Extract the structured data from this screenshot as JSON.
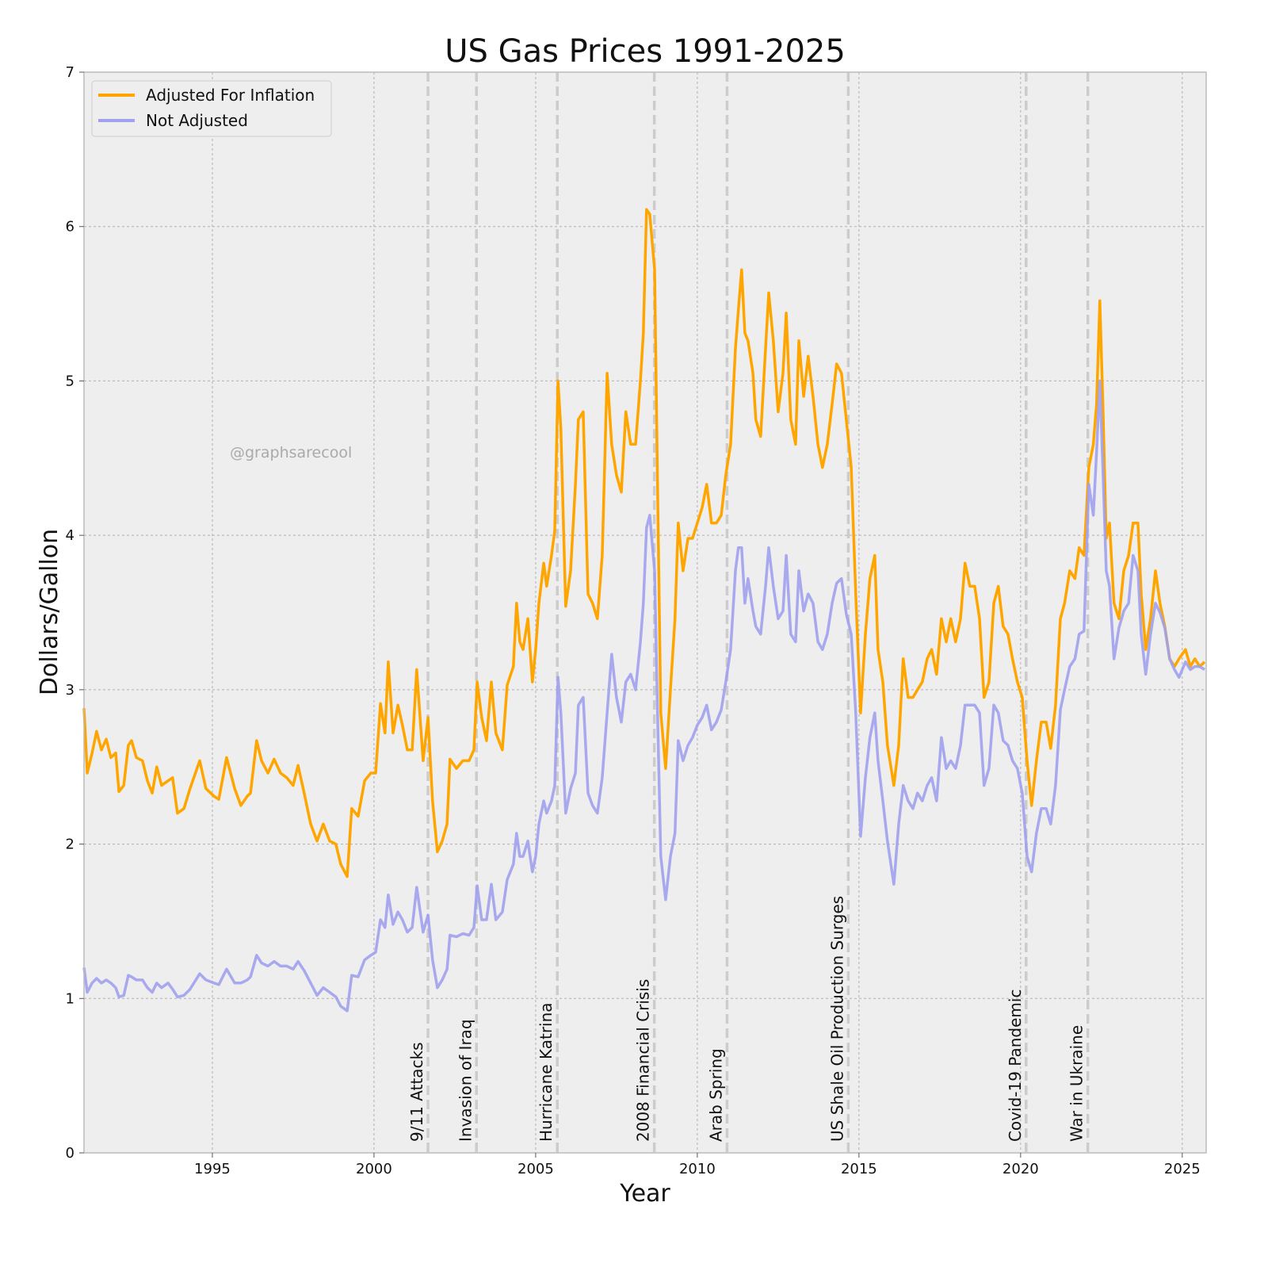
{
  "chart_data": {
    "type": "line",
    "title": "US Gas Prices 1991-2025",
    "xlabel": "Year",
    "ylabel": "Dollars/Gallon",
    "xlim": [
      1991.03,
      2025.74
    ],
    "ylim": [
      0,
      7
    ],
    "xticks": [
      1995,
      2000,
      2005,
      2010,
      2015,
      2020,
      2025
    ],
    "yticks": [
      0,
      1,
      2,
      3,
      4,
      5,
      6,
      7
    ],
    "grid": true,
    "legend_position": "top-left",
    "watermark": "@graphsarecool",
    "x": [
      1991.03,
      1991.13,
      1991.28,
      1991.42,
      1991.57,
      1991.72,
      1991.86,
      1992.01,
      1992.11,
      1992.26,
      1992.4,
      1992.5,
      1992.65,
      1992.84,
      1992.99,
      1993.14,
      1993.28,
      1993.43,
      1993.63,
      1993.77,
      1993.92,
      1994.12,
      1994.31,
      1994.61,
      1994.8,
      1995.05,
      1995.2,
      1995.44,
      1995.69,
      1995.88,
      1996.08,
      1996.18,
      1996.37,
      1996.52,
      1996.72,
      1996.91,
      1997.11,
      1997.3,
      1997.5,
      1997.65,
      1997.84,
      1998.04,
      1998.24,
      1998.43,
      1998.63,
      1998.82,
      1998.97,
      1999.17,
      1999.31,
      1999.51,
      1999.71,
      1999.9,
      2000.05,
      2000.2,
      2000.34,
      2000.44,
      2000.59,
      2000.74,
      2000.88,
      2001.03,
      2001.18,
      2001.32,
      2001.52,
      2001.67,
      2001.81,
      2001.96,
      2002.11,
      2002.26,
      2002.35,
      2002.55,
      2002.75,
      2002.94,
      2003.09,
      2003.19,
      2003.33,
      2003.48,
      2003.63,
      2003.77,
      2003.97,
      2004.12,
      2004.31,
      2004.41,
      2004.51,
      2004.61,
      2004.76,
      2004.9,
      2005.0,
      2005.1,
      2005.25,
      2005.34,
      2005.49,
      2005.59,
      2005.69,
      2005.78,
      2005.93,
      2006.08,
      2006.23,
      2006.32,
      2006.47,
      2006.62,
      2006.76,
      2006.91,
      2007.06,
      2007.21,
      2007.35,
      2007.5,
      2007.65,
      2007.79,
      2007.94,
      2008.09,
      2008.24,
      2008.33,
      2008.43,
      2008.53,
      2008.68,
      2008.77,
      2008.87,
      2009.02,
      2009.17,
      2009.31,
      2009.41,
      2009.56,
      2009.71,
      2009.85,
      2010.0,
      2010.15,
      2010.29,
      2010.44,
      2010.59,
      2010.74,
      2010.88,
      2011.03,
      2011.18,
      2011.27,
      2011.37,
      2011.47,
      2011.57,
      2011.72,
      2011.81,
      2011.96,
      2012.11,
      2012.21,
      2012.35,
      2012.5,
      2012.65,
      2012.75,
      2012.89,
      2013.04,
      2013.14,
      2013.29,
      2013.43,
      2013.58,
      2013.73,
      2013.87,
      2014.02,
      2014.17,
      2014.31,
      2014.46,
      2014.61,
      2014.76,
      2014.9,
      2015.05,
      2015.2,
      2015.34,
      2015.49,
      2015.59,
      2015.74,
      2015.88,
      2016.08,
      2016.23,
      2016.37,
      2016.52,
      2016.67,
      2016.81,
      2016.96,
      2017.11,
      2017.25,
      2017.4,
      2017.55,
      2017.7,
      2017.84,
      2017.99,
      2018.14,
      2018.28,
      2018.43,
      2018.58,
      2018.73,
      2018.87,
      2019.02,
      2019.17,
      2019.31,
      2019.46,
      2019.61,
      2019.75,
      2019.9,
      2020.05,
      2020.2,
      2020.34,
      2020.49,
      2020.64,
      2020.79,
      2020.93,
      2021.08,
      2021.23,
      2021.36,
      2021.52,
      2021.68,
      2021.81,
      2021.96,
      2022.11,
      2022.25,
      2022.35,
      2022.45,
      2022.55,
      2022.65,
      2022.75,
      2022.89,
      2023.04,
      2023.19,
      2023.34,
      2023.48,
      2023.63,
      2023.73,
      2023.87,
      2024.02,
      2024.17,
      2024.31,
      2024.46,
      2024.61,
      2024.76,
      2024.9,
      2025.1,
      2025.25,
      2025.39,
      2025.54,
      2025.69
    ],
    "series": [
      {
        "name": "Adjusted For Inflation",
        "color": "#ffa500",
        "values": [
          2.88,
          2.46,
          2.59,
          2.73,
          2.61,
          2.68,
          2.56,
          2.59,
          2.34,
          2.38,
          2.64,
          2.67,
          2.56,
          2.54,
          2.41,
          2.33,
          2.5,
          2.38,
          2.41,
          2.43,
          2.2,
          2.23,
          2.36,
          2.54,
          2.36,
          2.31,
          2.29,
          2.56,
          2.36,
          2.25,
          2.31,
          2.33,
          2.67,
          2.54,
          2.46,
          2.55,
          2.46,
          2.43,
          2.38,
          2.51,
          2.33,
          2.13,
          2.02,
          2.13,
          2.02,
          2.0,
          1.87,
          1.79,
          2.23,
          2.18,
          2.41,
          2.46,
          2.46,
          2.91,
          2.72,
          3.18,
          2.72,
          2.9,
          2.77,
          2.61,
          2.61,
          3.13,
          2.54,
          2.82,
          2.28,
          1.95,
          2.02,
          2.13,
          2.55,
          2.49,
          2.54,
          2.54,
          2.61,
          3.05,
          2.82,
          2.67,
          3.05,
          2.72,
          2.61,
          3.03,
          3.15,
          3.56,
          3.31,
          3.26,
          3.46,
          3.05,
          3.26,
          3.56,
          3.82,
          3.67,
          3.87,
          4.03,
          5.0,
          4.69,
          3.54,
          3.77,
          4.33,
          4.75,
          4.8,
          3.62,
          3.56,
          3.46,
          3.87,
          5.05,
          4.59,
          4.39,
          4.28,
          4.8,
          4.59,
          4.59,
          5.0,
          5.31,
          6.11,
          6.08,
          5.72,
          4.33,
          2.85,
          2.49,
          3.0,
          3.46,
          4.08,
          3.77,
          3.98,
          3.98,
          4.08,
          4.18,
          4.33,
          4.08,
          4.08,
          4.13,
          4.39,
          4.59,
          5.21,
          5.46,
          5.72,
          5.31,
          5.26,
          5.05,
          4.75,
          4.64,
          5.21,
          5.57,
          5.26,
          4.8,
          5.05,
          5.44,
          4.75,
          4.59,
          5.26,
          4.9,
          5.16,
          4.9,
          4.59,
          4.44,
          4.59,
          4.85,
          5.11,
          5.05,
          4.75,
          4.44,
          3.62,
          2.85,
          3.36,
          3.72,
          3.87,
          3.26,
          3.05,
          2.64,
          2.38,
          2.64,
          3.2,
          2.95,
          2.95,
          3.0,
          3.05,
          3.2,
          3.26,
          3.1,
          3.46,
          3.31,
          3.46,
          3.31,
          3.46,
          3.82,
          3.67,
          3.67,
          3.46,
          2.95,
          3.05,
          3.56,
          3.67,
          3.41,
          3.36,
          3.2,
          3.05,
          2.95,
          2.54,
          2.25,
          2.54,
          2.79,
          2.79,
          2.62,
          2.9,
          3.46,
          3.56,
          3.77,
          3.72,
          3.92,
          3.87,
          4.44,
          4.59,
          4.85,
          5.52,
          4.8,
          3.98,
          4.08,
          3.56,
          3.46,
          3.77,
          3.87,
          4.08,
          4.08,
          3.62,
          3.26,
          3.46,
          3.77,
          3.56,
          3.41,
          3.2,
          3.15,
          3.2,
          3.26,
          3.15,
          3.2,
          3.15,
          3.18
        ]
      },
      {
        "name": "Not Adjusted",
        "color": "#a0a0ee",
        "values": [
          1.2,
          1.04,
          1.1,
          1.13,
          1.1,
          1.12,
          1.1,
          1.07,
          1.01,
          1.02,
          1.15,
          1.14,
          1.12,
          1.12,
          1.07,
          1.04,
          1.1,
          1.07,
          1.1,
          1.06,
          1.01,
          1.02,
          1.06,
          1.16,
          1.12,
          1.1,
          1.09,
          1.19,
          1.1,
          1.1,
          1.12,
          1.14,
          1.28,
          1.23,
          1.21,
          1.24,
          1.21,
          1.21,
          1.19,
          1.24,
          1.18,
          1.1,
          1.02,
          1.07,
          1.04,
          1.01,
          0.95,
          0.92,
          1.15,
          1.14,
          1.25,
          1.28,
          1.3,
          1.51,
          1.46,
          1.67,
          1.48,
          1.56,
          1.51,
          1.43,
          1.46,
          1.72,
          1.43,
          1.54,
          1.25,
          1.07,
          1.12,
          1.19,
          1.41,
          1.4,
          1.42,
          1.41,
          1.46,
          1.73,
          1.51,
          1.51,
          1.74,
          1.51,
          1.56,
          1.77,
          1.87,
          2.07,
          1.92,
          1.92,
          2.02,
          1.82,
          1.92,
          2.13,
          2.28,
          2.2,
          2.28,
          2.38,
          3.08,
          2.85,
          2.2,
          2.36,
          2.46,
          2.9,
          2.95,
          2.33,
          2.25,
          2.2,
          2.43,
          2.85,
          3.23,
          2.95,
          2.79,
          3.05,
          3.1,
          3.0,
          3.31,
          3.56,
          4.05,
          4.13,
          3.77,
          2.85,
          1.92,
          1.64,
          1.92,
          2.07,
          2.67,
          2.54,
          2.64,
          2.69,
          2.77,
          2.82,
          2.9,
          2.74,
          2.79,
          2.87,
          3.05,
          3.26,
          3.77,
          3.92,
          3.92,
          3.56,
          3.72,
          3.51,
          3.41,
          3.36,
          3.67,
          3.92,
          3.67,
          3.46,
          3.51,
          3.87,
          3.36,
          3.31,
          3.77,
          3.51,
          3.62,
          3.56,
          3.31,
          3.26,
          3.36,
          3.56,
          3.69,
          3.72,
          3.49,
          3.36,
          2.85,
          2.05,
          2.43,
          2.69,
          2.85,
          2.54,
          2.28,
          2.02,
          1.74,
          2.13,
          2.38,
          2.28,
          2.23,
          2.33,
          2.28,
          2.38,
          2.43,
          2.28,
          2.69,
          2.49,
          2.54,
          2.49,
          2.64,
          2.9,
          2.9,
          2.9,
          2.85,
          2.38,
          2.49,
          2.9,
          2.85,
          2.67,
          2.64,
          2.54,
          2.49,
          2.33,
          1.92,
          1.82,
          2.07,
          2.23,
          2.23,
          2.13,
          2.38,
          2.87,
          3.0,
          3.15,
          3.2,
          3.36,
          3.38,
          4.33,
          4.13,
          4.54,
          5.0,
          4.39,
          3.77,
          3.67,
          3.2,
          3.4,
          3.51,
          3.56,
          3.87,
          3.77,
          3.36,
          3.1,
          3.36,
          3.56,
          3.5,
          3.4,
          3.2,
          3.13,
          3.08,
          3.18,
          3.13,
          3.15,
          3.15,
          3.13
        ]
      }
    ],
    "events": [
      {
        "label": "9/11 Attacks",
        "year": 2001.67
      },
      {
        "label": "Invasion of Iraq",
        "year": 2003.17
      },
      {
        "label": "Hurricane Katrina",
        "year": 2005.67
      },
      {
        "label": "2008 Financial Crisis",
        "year": 2008.67
      },
      {
        "label": "Arab Spring",
        "year": 2010.92
      },
      {
        "label": "US Shale Oil Production Surges",
        "year": 2014.67
      },
      {
        "label": "Covid-19 Pandemic",
        "year": 2020.17
      },
      {
        "label": "War in Ukraine",
        "year": 2022.08
      }
    ]
  }
}
